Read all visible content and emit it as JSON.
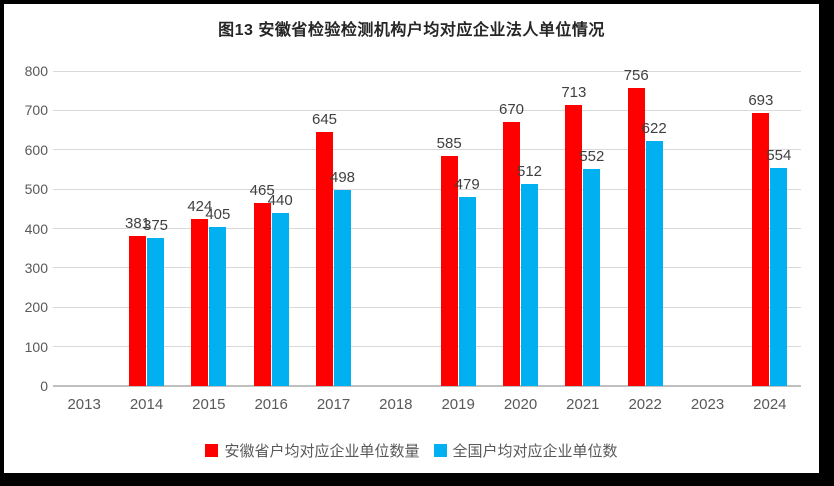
{
  "chart_data": {
    "type": "bar",
    "title": "图13 安徽省检验检测机构户均对应企业法人单位情况",
    "categories": [
      "2013",
      "2014",
      "2015",
      "2016",
      "2017",
      "2018",
      "2019",
      "2020",
      "2021",
      "2022",
      "2023",
      "2024"
    ],
    "series": [
      {
        "name": "安徽省户均对应企业单位数量",
        "color": "#FF0000",
        "values": [
          null,
          381,
          424,
          465,
          645,
          null,
          585,
          670,
          713,
          756,
          null,
          693
        ]
      },
      {
        "name": "全国户均对应企业单位数",
        "color": "#00B0F0",
        "values": [
          null,
          375,
          405,
          440,
          498,
          null,
          479,
          512,
          552,
          622,
          null,
          554
        ]
      }
    ],
    "xlabel": "",
    "ylabel": "",
    "ylim": [
      0,
      800
    ],
    "ytick_step": 100,
    "yticks": [
      0,
      100,
      200,
      300,
      400,
      500,
      600,
      700,
      800
    ],
    "grid": true,
    "legend_position": "bottom"
  },
  "colors": {
    "anhui_series": "#FF0000",
    "national_series": "#00B0F0",
    "gridline": "#D9D9D9",
    "axis_line": "#BFBFBF",
    "tick_text": "#595959",
    "data_label_text": "#404040",
    "title_text": "#262626",
    "frame_border": "#000000",
    "background": "#FFFFFF"
  }
}
